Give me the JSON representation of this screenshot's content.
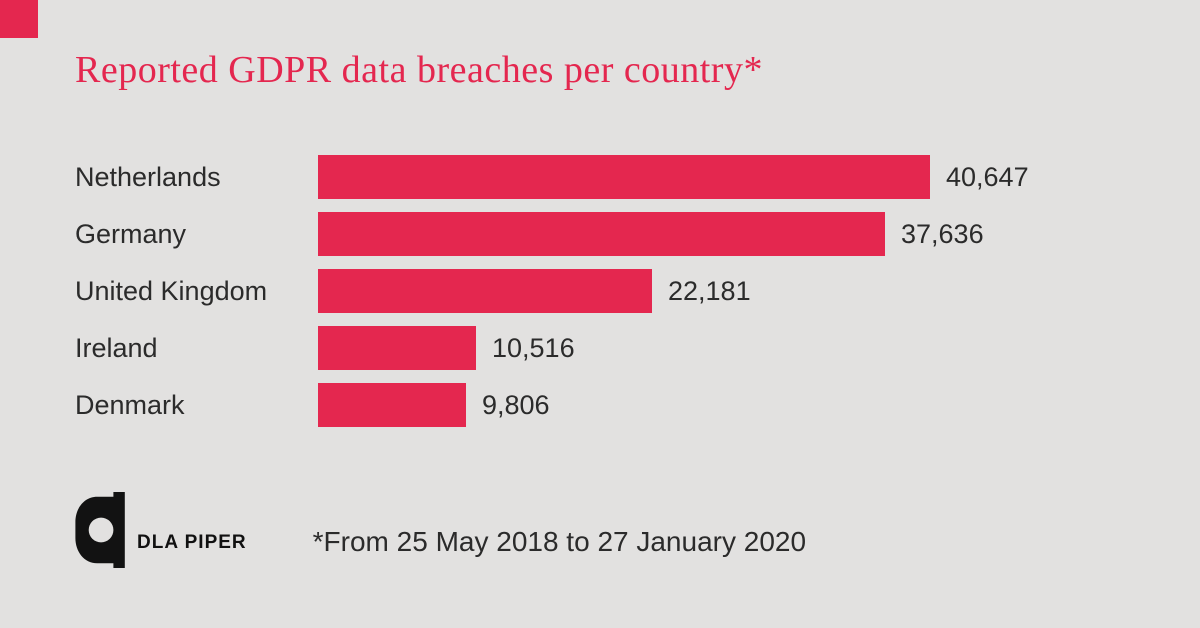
{
  "title": "Reported GDPR data breaches per country*",
  "footnote": "*From 25 May 2018 to 27 January 2020",
  "logo": {
    "text": "DLA PIPER"
  },
  "colors": {
    "accent": "#e4274f",
    "background": "#e2e1e0",
    "text": "#2b2b2b"
  },
  "chart_data": {
    "type": "bar",
    "orientation": "horizontal",
    "title": "Reported GDPR data breaches per country*",
    "categories": [
      "Netherlands",
      "Germany",
      "United Kingdom",
      "Ireland",
      "Denmark"
    ],
    "values": [
      40647,
      37636,
      22181,
      10516,
      9806
    ],
    "value_labels": [
      "40,647",
      "37,636",
      "22,181",
      "10,516",
      "9,806"
    ],
    "xlabel": "",
    "ylabel": "",
    "legend": false,
    "grid": false,
    "xlim": [
      0,
      40647
    ]
  }
}
